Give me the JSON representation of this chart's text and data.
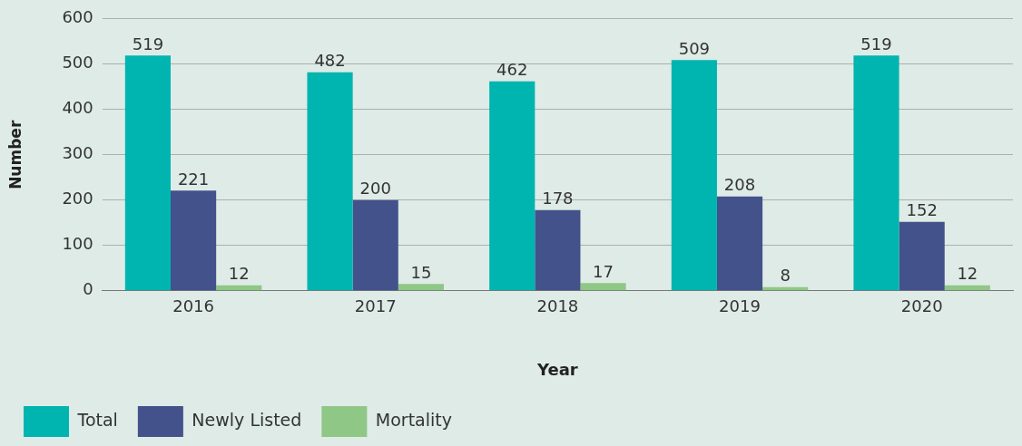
{
  "chart_data": {
    "type": "bar",
    "xlabel": "Year",
    "ylabel": "Number",
    "categories": [
      "2016",
      "2017",
      "2018",
      "2019",
      "2020"
    ],
    "series": [
      {
        "name": "Total",
        "color": "#00b4b0",
        "values": [
          519,
          482,
          462,
          509,
          519
        ]
      },
      {
        "name": "Newly Listed",
        "color": "#43528a",
        "values": [
          221,
          200,
          178,
          208,
          152
        ]
      },
      {
        "name": "Mortality",
        "color": "#8fc786",
        "values": [
          12,
          15,
          17,
          8,
          12
        ]
      }
    ],
    "ylim": [
      0,
      600
    ],
    "yticks": [
      0,
      100,
      200,
      300,
      400,
      500,
      600
    ],
    "grid": "y",
    "legend": "bottom left",
    "data_labels": true
  }
}
